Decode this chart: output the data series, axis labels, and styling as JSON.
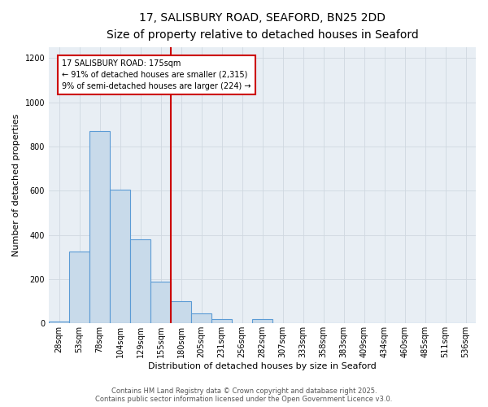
{
  "title_line1": "17, SALISBURY ROAD, SEAFORD, BN25 2DD",
  "title_line2": "Size of property relative to detached houses in Seaford",
  "xlabel": "Distribution of detached houses by size in Seaford",
  "ylabel": "Number of detached properties",
  "bar_labels": [
    "28sqm",
    "53sqm",
    "78sqm",
    "104sqm",
    "129sqm",
    "155sqm",
    "180sqm",
    "205sqm",
    "231sqm",
    "256sqm",
    "282sqm",
    "307sqm",
    "333sqm",
    "358sqm",
    "383sqm",
    "409sqm",
    "434sqm",
    "460sqm",
    "485sqm",
    "511sqm",
    "536sqm"
  ],
  "bar_values": [
    10,
    325,
    870,
    605,
    380,
    190,
    100,
    45,
    20,
    0,
    18,
    0,
    0,
    0,
    0,
    0,
    0,
    0,
    0,
    0,
    0
  ],
  "bar_color": "#c8daea",
  "bar_edge_color": "#5b9bd5",
  "ylim": [
    0,
    1250
  ],
  "yticks": [
    0,
    200,
    400,
    600,
    800,
    1000,
    1200
  ],
  "vline_x_index": 6,
  "vline_color": "#cc0000",
  "annotation_title": "17 SALISBURY ROAD: 175sqm",
  "annotation_line2": "← 91% of detached houses are smaller (2,315)",
  "annotation_line3": "9% of semi-detached houses are larger (224) →",
  "annotation_box_facecolor": "#ffffff",
  "annotation_box_edgecolor": "#cc0000",
  "footer_line1": "Contains HM Land Registry data © Crown copyright and database right 2025.",
  "footer_line2": "Contains public sector information licensed under the Open Government Licence v3.0.",
  "bg_color": "#ffffff",
  "plot_bg_color": "#e8eef4",
  "grid_color": "#d0d8e0",
  "title_fontsize": 10,
  "subtitle_fontsize": 8,
  "xlabel_fontsize": 8,
  "ylabel_fontsize": 8,
  "tick_fontsize": 7,
  "footer_fontsize": 6
}
